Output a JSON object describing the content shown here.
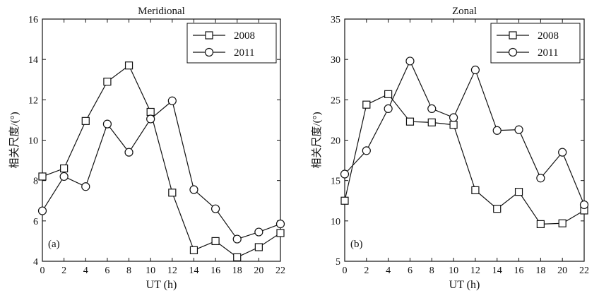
{
  "chart_data": [
    {
      "type": "line",
      "title": "Meridional",
      "xlabel": "UT (h)",
      "ylabel": "相关尺度/(°)",
      "panel_label": "(a)",
      "xlim": [
        0,
        22
      ],
      "ylim": [
        4,
        16
      ],
      "xticks": [
        "0",
        "2",
        "4",
        "6",
        "8",
        "10",
        "12",
        "14",
        "16",
        "18",
        "20",
        "22"
      ],
      "yticks": [
        "4",
        "6",
        "8",
        "10",
        "12",
        "14",
        "16"
      ],
      "legend_position": "top-right",
      "grid": false,
      "x": [
        0,
        2,
        4,
        6,
        8,
        10,
        12,
        14,
        16,
        18,
        20,
        22
      ],
      "series": [
        {
          "name": "2008",
          "marker": "square",
          "values": [
            8.2,
            8.6,
            10.95,
            12.9,
            13.7,
            11.4,
            7.4,
            4.55,
            5.0,
            4.2,
            4.7,
            5.4
          ]
        },
        {
          "name": "2011",
          "marker": "circle",
          "values": [
            6.5,
            8.2,
            7.7,
            10.8,
            9.4,
            11.05,
            11.95,
            7.55,
            6.6,
            5.1,
            5.45,
            5.85
          ]
        }
      ]
    },
    {
      "type": "line",
      "title": "Zonal",
      "xlabel": "UT (h)",
      "ylabel": "相关尺度/(°)",
      "panel_label": "(b)",
      "xlim": [
        0,
        22
      ],
      "ylim": [
        5,
        35
      ],
      "xticks": [
        "0",
        "2",
        "4",
        "6",
        "8",
        "10",
        "12",
        "14",
        "16",
        "18",
        "20",
        "22"
      ],
      "yticks": [
        "5",
        "10",
        "15",
        "20",
        "25",
        "30",
        "35"
      ],
      "legend_position": "top-right",
      "grid": false,
      "x": [
        0,
        2,
        4,
        6,
        8,
        10,
        12,
        14,
        16,
        18,
        20,
        22
      ],
      "series": [
        {
          "name": "2008",
          "marker": "square",
          "values": [
            12.5,
            24.4,
            25.7,
            22.3,
            22.2,
            21.9,
            13.8,
            11.5,
            13.6,
            9.6,
            9.7,
            11.3
          ]
        },
        {
          "name": "2011",
          "marker": "circle",
          "values": [
            15.8,
            18.7,
            23.9,
            29.8,
            23.9,
            22.8,
            28.7,
            21.2,
            21.3,
            15.3,
            18.5,
            12.0
          ]
        }
      ]
    }
  ]
}
